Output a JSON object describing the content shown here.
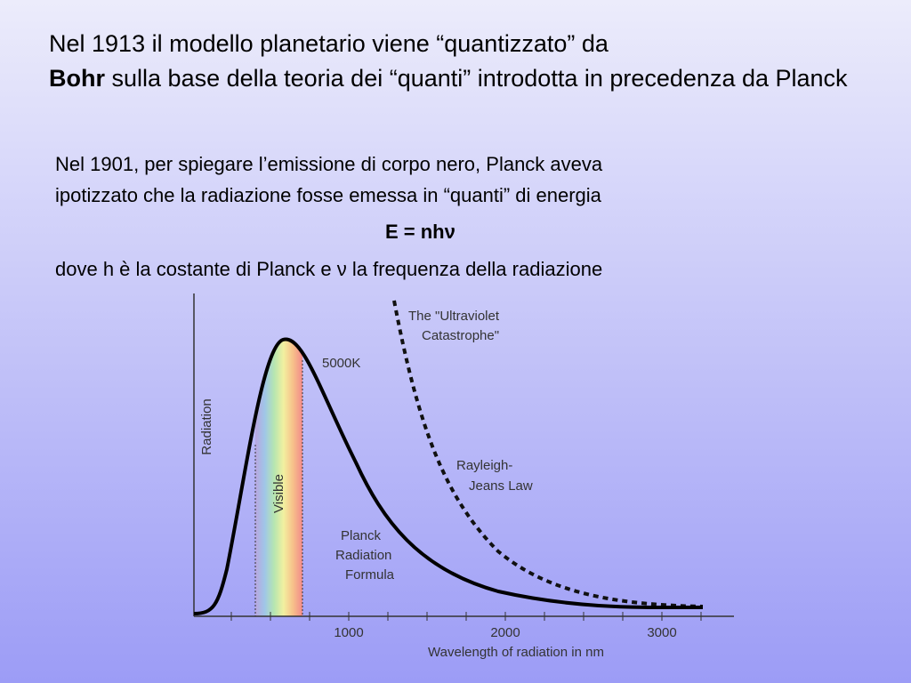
{
  "title": {
    "parts": [
      "Nel 1913 il modello planetario viene “quantizzato” da",
      "Bohr",
      "sulla base della teoria dei “quanti” introdotta in precedenza da Planck"
    ]
  },
  "body": {
    "intro": [
      "Nel  1901, per spiegare l’emissione di corpo nero, Planck aveva",
      "ipotizzato che la  radiazione fosse emessa in “quanti” di energia"
    ],
    "equation": "E = nhν",
    "explanation": "dove h è la costante di Planck e ν la frequenza della radiazione"
  },
  "figure": {
    "y_label": "Radiation",
    "x_label": "Wavelength of radiation in nm",
    "x_tick_labels": [
      "1000",
      "2000",
      "3000"
    ],
    "visible_label": "Visible",
    "temperature_label": "5000K",
    "uv_label": [
      "The \"Ultraviolet",
      "Catastrophe\""
    ],
    "rj_label": [
      "Rayleigh-",
      "Jeans Law"
    ],
    "planck_label": [
      "Planck",
      "Radiation",
      "Formula"
    ]
  }
}
